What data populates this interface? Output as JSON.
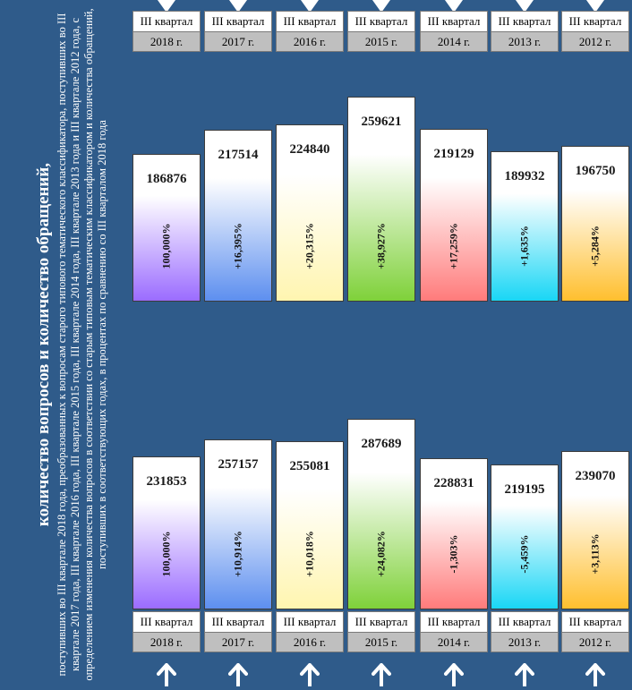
{
  "title": {
    "heading": "количество вопросов и количество обращений,",
    "body": "поступивших во III квартале 2018 года, преобразованных к вопросам старого типового тематического классификатора, поступивших во III квартале 2017 года, III квартале 2016 года, III квартале 2015 года, III квартале 2014 года, III квартале 2013 года и III квартале 2012 года, с определением изменения количества вопросов в соответствии со старым типовым тематическим классификатором и количества обращений, поступивших в соответствующих годах, в процентах по сравнению со III кварталом 2018 года"
  },
  "colors": {
    "background": "#2f5b8a",
    "bars": [
      "#9b6cff",
      "#5d8fef",
      "#fff5b0",
      "#7fd13a",
      "#ff7b7b",
      "#19d6f5",
      "#ffbf2e"
    ]
  },
  "chart_data": [
    {
      "type": "bar",
      "categories": [
        "III квартал 2018 г.",
        "III квартал 2017 г.",
        "III квартал 2016 г.",
        "III квартал 2015 г.",
        "III квартал 2014 г.",
        "III квартал 2013 г.",
        "III квартал 2012 г."
      ],
      "header_line1": "III квартал",
      "header_years": [
        "2018 г.",
        "2017 г.",
        "2016 г.",
        "2015 г.",
        "2014 г.",
        "2013 г.",
        "2012 г."
      ],
      "values": [
        186876,
        217514,
        224840,
        259621,
        219129,
        189932,
        196750
      ],
      "labels": [
        "186876",
        "217514",
        "224840",
        "259621",
        "219129",
        "189932",
        "196750"
      ],
      "changes": [
        "100,000%",
        "+16,395%",
        "+20,315%",
        "+38,927%",
        "+17,259%",
        "+1,635%",
        "+5,284%"
      ]
    },
    {
      "type": "bar",
      "categories": [
        "III квартал 2018 г.",
        "III квартал 2017 г.",
        "III квартал 2016 г.",
        "III квартал 2015 г.",
        "III квартал 2014 г.",
        "III квартал 2013 г.",
        "III квартал 2012 г."
      ],
      "header_line1": "III квартал",
      "header_years": [
        "2018 г.",
        "2017 г.",
        "2016 г.",
        "2015 г.",
        "2014 г.",
        "2013 г.",
        "2012 г."
      ],
      "values": [
        231853,
        257157,
        255081,
        287689,
        228831,
        219195,
        239070
      ],
      "labels": [
        "231853",
        "257157",
        "255081",
        "287689",
        "228831",
        "219195",
        "239070"
      ],
      "changes": [
        "100,000%",
        "+10,914%",
        "+10,018%",
        "+24,082%",
        "-1,303%",
        "-5,459%",
        "+3,113%"
      ]
    }
  ]
}
